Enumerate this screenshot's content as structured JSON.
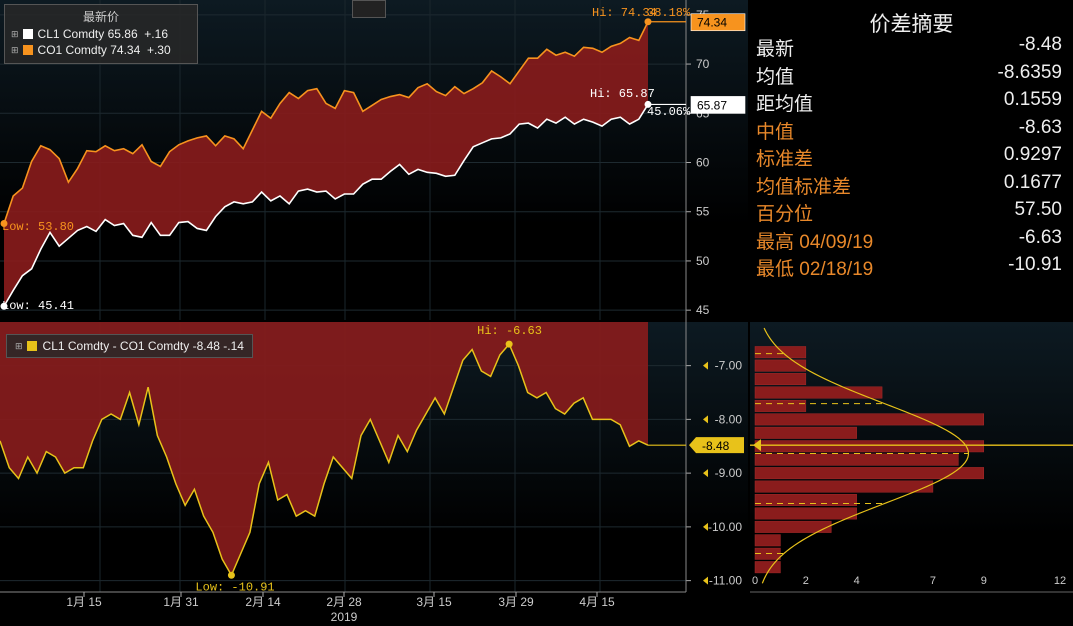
{
  "top_legend": {
    "title": "最新价",
    "series": [
      {
        "name": "CL1 Comdty",
        "last": "65.86",
        "change": "+.16",
        "color": "#ffffff"
      },
      {
        "name": "CO1 Comdty",
        "last": "74.34",
        "change": "+.30",
        "color": "#f7931e"
      }
    ]
  },
  "top_annotations": {
    "co1_hi": "Hi: 74.34",
    "co1_hi_pct": "38.18%",
    "co1_low": "Low: 53.80",
    "cl1_hi": "Hi: 65.87",
    "cl1_hi_pct": "45.06%",
    "cl1_low": "Low: 45.41",
    "co1_tag": "74.34",
    "cl1_tag": "65.87"
  },
  "bottom_legend": {
    "label": "CL1 Comdty - CO1 Comdty -8.48  -.14",
    "color": "#e8c21a"
  },
  "bottom_annotations": {
    "hi": "Hi: -6.63",
    "low": "Low: -10.91",
    "last_tag": "-8.48"
  },
  "x_axis": {
    "ticks": [
      "1月 15",
      "1月 31",
      "2月 14",
      "2月 28",
      "3月 15",
      "3月 29",
      "4月 15"
    ],
    "year": "2019"
  },
  "summary": {
    "title": "价差摘要",
    "rows": [
      {
        "label": "最新",
        "value": "-8.48",
        "style": "w"
      },
      {
        "label": "均值",
        "value": "-8.6359",
        "style": "w"
      },
      {
        "label": "距均值",
        "value": "0.1559",
        "style": "w"
      },
      {
        "label": "中值",
        "value": "-8.63",
        "style": "o"
      },
      {
        "label": "标准差",
        "value": "0.9297",
        "style": "o"
      },
      {
        "label": "均值标准差",
        "value": "0.1677",
        "style": "o"
      },
      {
        "label": "百分位",
        "value": "57.50",
        "style": "o"
      },
      {
        "label": "最高 04/09/19",
        "value": "-6.63",
        "style": "o"
      },
      {
        "label": "最低 02/18/19",
        "value": "-10.91",
        "style": "o"
      }
    ]
  },
  "chart_data": [
    {
      "type": "line",
      "ylim": [
        44,
        76
      ],
      "yticks": [
        "45",
        "50",
        "55",
        "60",
        "65",
        "70",
        "75"
      ],
      "series": [
        {
          "name": "CO1 Comdty",
          "color": "#f7931e",
          "values": [
            53.8,
            56.6,
            57.4,
            60.1,
            61.7,
            61.3,
            60.4,
            58.0,
            59.4,
            61.2,
            61.1,
            61.7,
            61.2,
            61.4,
            60.9,
            61.8,
            60.1,
            59.6,
            61.1,
            61.8,
            62.2,
            62.5,
            62.7,
            61.7,
            62.7,
            62.4,
            61.4,
            63.3,
            65.2,
            64.5,
            66.0,
            67.1,
            66.5,
            67.3,
            67.5,
            66.0,
            65.5,
            67.3,
            67.1,
            65.2,
            65.8,
            66.4,
            66.7,
            66.9,
            66.6,
            67.6,
            68.0,
            67.2,
            66.8,
            67.7,
            67.0,
            67.5,
            68.1,
            69.3,
            68.7,
            68.0,
            69.3,
            70.6,
            70.6,
            71.5,
            70.9,
            71.2,
            70.8,
            71.7,
            71.6,
            71.2,
            71.8,
            72.1,
            72.7,
            72.4,
            74.3
          ]
        },
        {
          "name": "CL1 Comdty",
          "color": "#ffffff",
          "values": [
            45.4,
            47.0,
            48.5,
            49.2,
            51.2,
            52.9,
            51.5,
            52.3,
            53.1,
            53.5,
            53.0,
            54.2,
            53.6,
            53.8,
            52.6,
            52.4,
            53.9,
            52.6,
            52.6,
            53.9,
            54.0,
            53.3,
            53.1,
            54.5,
            55.5,
            56.0,
            55.8,
            56.0,
            57.0,
            56.1,
            56.6,
            55.8,
            57.1,
            57.3,
            57.0,
            57.1,
            56.3,
            56.8,
            56.8,
            57.8,
            58.3,
            58.3,
            59.1,
            59.8,
            58.8,
            59.3,
            59.0,
            58.9,
            58.6,
            58.7,
            60.2,
            61.6,
            62.0,
            62.4,
            62.5,
            62.9,
            63.9,
            64.0,
            63.5,
            64.4,
            64.0,
            64.6,
            63.9,
            64.4,
            64.1,
            63.7,
            64.4,
            64.6,
            63.9,
            64.4,
            65.9
          ]
        }
      ]
    },
    {
      "type": "line",
      "ylim": [
        -11.1,
        -6.3
      ],
      "yticks": [
        "-7.00",
        "-8.00",
        "-9.00",
        "-10.00",
        "-11.00"
      ],
      "series": [
        {
          "name": "CL1 Comdty - CO1 Comdty",
          "color": "#e8c21a",
          "values": [
            -8.4,
            -8.9,
            -9.1,
            -8.7,
            -9.0,
            -8.6,
            -8.7,
            -9.0,
            -8.9,
            -8.9,
            -8.4,
            -8.0,
            -7.9,
            -8.0,
            -7.5,
            -8.1,
            -7.4,
            -8.3,
            -8.7,
            -9.2,
            -9.6,
            -9.3,
            -9.8,
            -10.1,
            -10.6,
            -10.9,
            -10.5,
            -10.1,
            -9.2,
            -8.8,
            -9.5,
            -9.4,
            -9.8,
            -9.7,
            -9.8,
            -9.2,
            -8.7,
            -8.9,
            -9.1,
            -8.3,
            -8.0,
            -8.4,
            -8.8,
            -8.3,
            -8.6,
            -8.2,
            -7.9,
            -7.6,
            -7.9,
            -7.4,
            -6.9,
            -6.7,
            -7.1,
            -7.2,
            -6.8,
            -6.6,
            -7.0,
            -7.5,
            -7.6,
            -7.5,
            -7.8,
            -7.9,
            -7.7,
            -7.6,
            -8.0,
            -8.0,
            -8.0,
            -8.1,
            -8.5,
            -8.4,
            -8.48
          ]
        }
      ]
    },
    {
      "type": "bar",
      "orientation": "horizontal",
      "xticks": [
        "0",
        "2",
        "4",
        "7",
        "9",
        "12"
      ],
      "xlim": [
        0,
        12
      ],
      "bins": [
        -6.75,
        -7.0,
        -7.25,
        -7.5,
        -7.75,
        -8.0,
        -8.25,
        -8.5,
        -8.75,
        -9.0,
        -9.25,
        -9.5,
        -9.75,
        -10.0,
        -10.25,
        -10.5,
        -10.75
      ],
      "values": [
        2,
        2,
        2,
        5,
        2,
        9,
        4,
        9,
        8,
        9,
        7,
        4,
        4,
        3,
        1,
        1,
        1
      ],
      "mean": -8.6359,
      "std": 0.9297,
      "last": -8.48
    }
  ]
}
